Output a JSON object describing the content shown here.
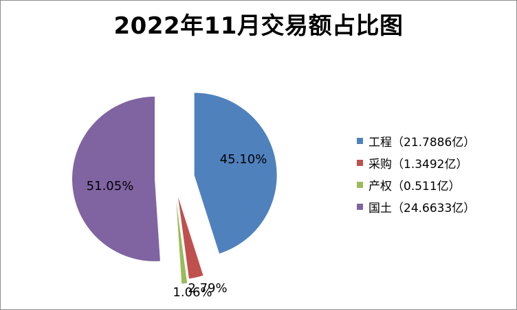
{
  "chart_data": {
    "type": "pie",
    "title": "2022年11月交易额占比图",
    "legend_position": "right",
    "slices": [
      {
        "label": "工程",
        "value": 21.7886,
        "percent": 45.1,
        "percent_label": "45.10%",
        "color": "#4F81BD",
        "legend_text": "工程（21.7886亿）"
      },
      {
        "label": "采购",
        "value": 1.3492,
        "percent": 2.79,
        "percent_label": "2.79%",
        "color": "#C0504D",
        "legend_text": "采购（1.3492亿）"
      },
      {
        "label": "产权",
        "value": 0.511,
        "percent": 1.06,
        "percent_label": "1.06%",
        "color": "#9BBB59",
        "legend_text": "产权（0.511亿）"
      },
      {
        "label": "国土",
        "value": 24.6633,
        "percent": 51.05,
        "percent_label": "51.05%",
        "color": "#8064A2",
        "legend_text": "国土（24.6633亿）"
      }
    ]
  }
}
